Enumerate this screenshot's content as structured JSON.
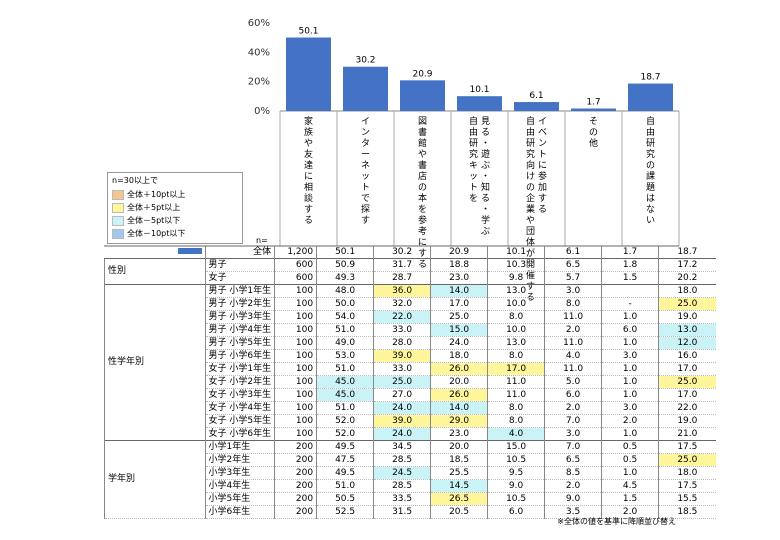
{
  "chart_data": {
    "type": "bar",
    "categories": [
      "家族や友達に相談する",
      "インターネットで探す",
      "図書館や書店の本を参考にする",
      "見る・遊ぶ・知る・学ぶ 自由研究キットを",
      "イベントに参加する 自由研究向けの企業や団体が開催する",
      "その他",
      "自由研究の課題はない"
    ],
    "values": [
      50.1,
      30.2,
      20.9,
      10.1,
      6.1,
      1.7,
      18.7
    ],
    "value_labels": [
      "50.1",
      "30.2",
      "20.9",
      "10.1",
      "6.1",
      "1.7",
      "18.7"
    ],
    "ylim": [
      0,
      60
    ],
    "yticks": [
      "0%",
      "20%",
      "40%",
      "60%"
    ],
    "bar_color": "#4472c4",
    "grid": false
  },
  "legend": {
    "title": "n=30以上で",
    "items": [
      {
        "label": "全体＋10pt以上",
        "color": "#f5c58e"
      },
      {
        "label": "全体＋5pt以上",
        "color": "#fff59a"
      },
      {
        "label": "全体－5pt以下",
        "color": "#c9f3f6"
      },
      {
        "label": "全体－10pt以下",
        "color": "#9ec8ee"
      }
    ]
  },
  "table": {
    "n_header": "n=",
    "rows": [
      {
        "group": "",
        "label": "全体",
        "n": "1,200",
        "values": [
          "50.1",
          "30.2",
          "20.9",
          "10.1",
          "6.1",
          "1.7",
          "18.7"
        ],
        "hl": [
          "",
          "",
          "",
          "",
          "",
          "",
          ""
        ],
        "total": true
      },
      {
        "group": "性別",
        "label": "男子",
        "n": "600",
        "values": [
          "50.9",
          "31.7",
          "18.8",
          "10.3",
          "6.5",
          "1.8",
          "17.2"
        ],
        "hl": [
          "",
          "",
          "",
          "",
          "",
          "",
          ""
        ]
      },
      {
        "group": "",
        "label": "女子",
        "n": "600",
        "values": [
          "49.3",
          "28.7",
          "23.0",
          "9.8",
          "5.7",
          "1.5",
          "20.2"
        ],
        "hl": [
          "",
          "",
          "",
          "",
          "",
          "",
          ""
        ]
      },
      {
        "group": "性学年別",
        "label": "男子 小学1年生",
        "n": "100",
        "values": [
          "48.0",
          "36.0",
          "14.0",
          "13.0",
          "3.0",
          "",
          "18.0"
        ],
        "hl": [
          "",
          "yl",
          "lb",
          "",
          "",
          "",
          ""
        ]
      },
      {
        "group": "",
        "label": "男子 小学2年生",
        "n": "100",
        "values": [
          "50.0",
          "32.0",
          "17.0",
          "10.0",
          "8.0",
          "-",
          "25.0"
        ],
        "hl": [
          "",
          "",
          "",
          "",
          "",
          "",
          "yl"
        ]
      },
      {
        "group": "",
        "label": "男子 小学3年生",
        "n": "100",
        "values": [
          "54.0",
          "22.0",
          "25.0",
          "8.0",
          "11.0",
          "1.0",
          "19.0"
        ],
        "hl": [
          "",
          "lb",
          "",
          "",
          "",
          "",
          ""
        ]
      },
      {
        "group": "",
        "label": "男子 小学4年生",
        "n": "100",
        "values": [
          "51.0",
          "33.0",
          "15.0",
          "10.0",
          "2.0",
          "6.0",
          "13.0"
        ],
        "hl": [
          "",
          "",
          "lb",
          "",
          "",
          "",
          "lb"
        ]
      },
      {
        "group": "",
        "label": "男子 小学5年生",
        "n": "100",
        "values": [
          "49.0",
          "28.0",
          "24.0",
          "13.0",
          "11.0",
          "1.0",
          "12.0"
        ],
        "hl": [
          "",
          "",
          "",
          "",
          "",
          "",
          "lb"
        ]
      },
      {
        "group": "",
        "label": "男子 小学6年生",
        "n": "100",
        "values": [
          "53.0",
          "39.0",
          "18.0",
          "8.0",
          "4.0",
          "3.0",
          "16.0"
        ],
        "hl": [
          "",
          "yl",
          "",
          "",
          "",
          "",
          ""
        ]
      },
      {
        "group": "",
        "label": "女子 小学1年生",
        "n": "100",
        "values": [
          "51.0",
          "33.0",
          "26.0",
          "17.0",
          "11.0",
          "1.0",
          "17.0"
        ],
        "hl": [
          "",
          "",
          "yl",
          "yl",
          "",
          "",
          ""
        ]
      },
      {
        "group": "",
        "label": "女子 小学2年生",
        "n": "100",
        "values": [
          "45.0",
          "25.0",
          "20.0",
          "11.0",
          "5.0",
          "1.0",
          "25.0"
        ],
        "hl": [
          "lb",
          "lb",
          "",
          "",
          "",
          "",
          "yl"
        ]
      },
      {
        "group": "",
        "label": "女子 小学3年生",
        "n": "100",
        "values": [
          "45.0",
          "27.0",
          "26.0",
          "11.0",
          "6.0",
          "1.0",
          "17.0"
        ],
        "hl": [
          "lb",
          "",
          "yl",
          "",
          "",
          "",
          ""
        ]
      },
      {
        "group": "",
        "label": "女子 小学4年生",
        "n": "100",
        "values": [
          "51.0",
          "24.0",
          "14.0",
          "8.0",
          "2.0",
          "3.0",
          "22.0"
        ],
        "hl": [
          "",
          "lb",
          "lb",
          "",
          "",
          "",
          ""
        ]
      },
      {
        "group": "",
        "label": "女子 小学5年生",
        "n": "100",
        "values": [
          "52.0",
          "39.0",
          "29.0",
          "8.0",
          "7.0",
          "2.0",
          "19.0"
        ],
        "hl": [
          "",
          "yl",
          "yl",
          "",
          "",
          "",
          ""
        ]
      },
      {
        "group": "",
        "label": "女子 小学6年生",
        "n": "100",
        "values": [
          "52.0",
          "24.0",
          "23.0",
          "4.0",
          "3.0",
          "1.0",
          "21.0"
        ],
        "hl": [
          "",
          "lb",
          "",
          "lb",
          "",
          "",
          ""
        ]
      },
      {
        "group": "学年別",
        "label": "小学1年生",
        "n": "200",
        "values": [
          "49.5",
          "34.5",
          "20.0",
          "15.0",
          "7.0",
          "0.5",
          "17.5"
        ],
        "hl": [
          "",
          "",
          "",
          "",
          "",
          "",
          ""
        ]
      },
      {
        "group": "",
        "label": "小学2年生",
        "n": "200",
        "values": [
          "47.5",
          "28.5",
          "18.5",
          "10.5",
          "6.5",
          "0.5",
          "25.0"
        ],
        "hl": [
          "",
          "",
          "",
          "",
          "",
          "",
          "yl"
        ]
      },
      {
        "group": "",
        "label": "小学3年生",
        "n": "200",
        "values": [
          "49.5",
          "24.5",
          "25.5",
          "9.5",
          "8.5",
          "1.0",
          "18.0"
        ],
        "hl": [
          "",
          "lb",
          "",
          "",
          "",
          "",
          ""
        ]
      },
      {
        "group": "",
        "label": "小学4年生",
        "n": "200",
        "values": [
          "51.0",
          "28.5",
          "14.5",
          "9.0",
          "2.0",
          "4.5",
          "17.5"
        ],
        "hl": [
          "",
          "",
          "lb",
          "",
          "",
          "",
          ""
        ]
      },
      {
        "group": "",
        "label": "小学5年生",
        "n": "200",
        "values": [
          "50.5",
          "33.5",
          "26.5",
          "10.5",
          "9.0",
          "1.5",
          "15.5"
        ],
        "hl": [
          "",
          "",
          "yl",
          "",
          "",
          "",
          ""
        ]
      },
      {
        "group": "",
        "label": "小学6年生",
        "n": "200",
        "values": [
          "52.5",
          "31.5",
          "20.5",
          "6.0",
          "3.5",
          "2.0",
          "18.5"
        ],
        "hl": [
          "",
          "",
          "",
          "",
          "",
          "",
          ""
        ]
      }
    ]
  },
  "note": "※全体の値を基準に降順並び替え"
}
